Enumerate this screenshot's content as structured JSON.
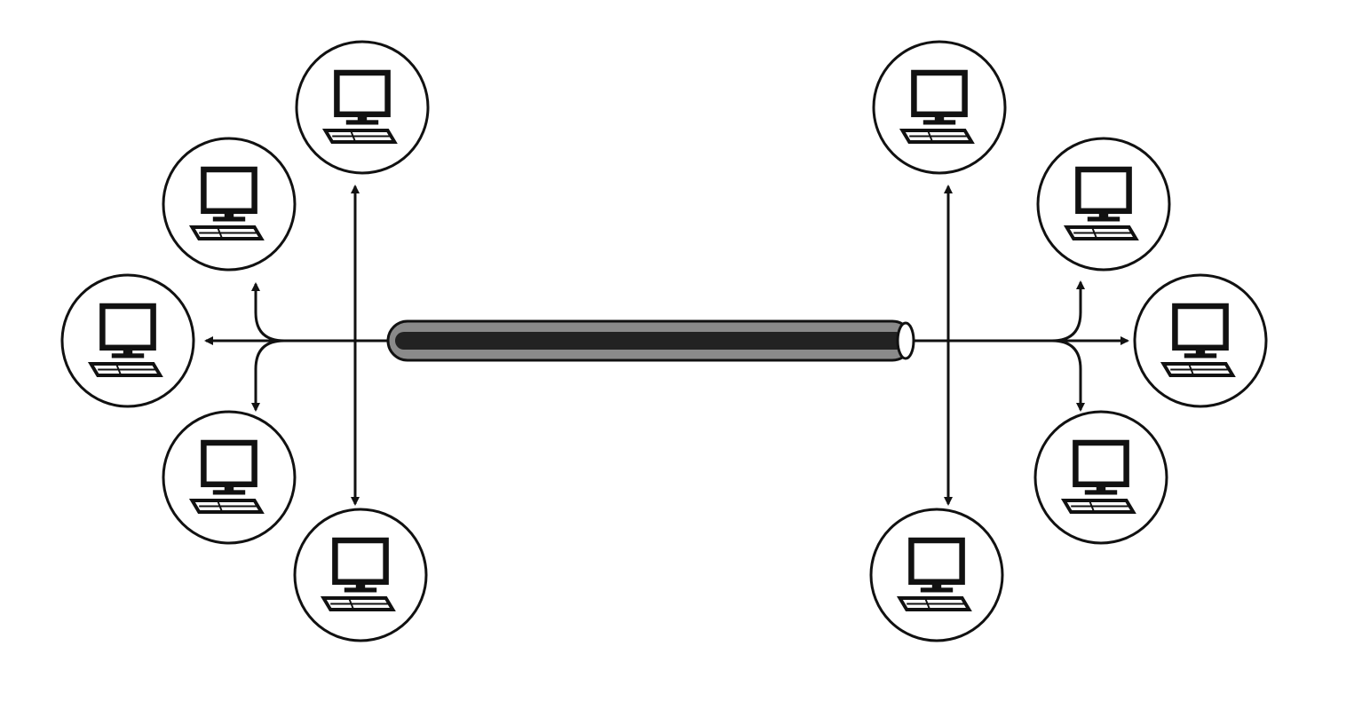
{
  "diagram": {
    "type": "bus-network",
    "backbone": {
      "name": "backbone-cable",
      "color": "#222222",
      "sheath_color": "#8a8a8a"
    },
    "stroke_color": "#111111",
    "background_color": "#ffffff",
    "groups": [
      {
        "side": "left",
        "nodes": [
          {
            "id": "left-top",
            "icon": "desktop-computer-icon"
          },
          {
            "id": "left-upper",
            "icon": "desktop-computer-icon"
          },
          {
            "id": "left-middle",
            "icon": "desktop-computer-icon"
          },
          {
            "id": "left-lower",
            "icon": "desktop-computer-icon"
          },
          {
            "id": "left-bottom",
            "icon": "desktop-computer-icon"
          }
        ]
      },
      {
        "side": "right",
        "nodes": [
          {
            "id": "right-top",
            "icon": "desktop-computer-icon"
          },
          {
            "id": "right-upper",
            "icon": "desktop-computer-icon"
          },
          {
            "id": "right-middle",
            "icon": "desktop-computer-icon"
          },
          {
            "id": "right-lower",
            "icon": "desktop-computer-icon"
          },
          {
            "id": "right-bottom",
            "icon": "desktop-computer-icon"
          }
        ]
      }
    ]
  }
}
